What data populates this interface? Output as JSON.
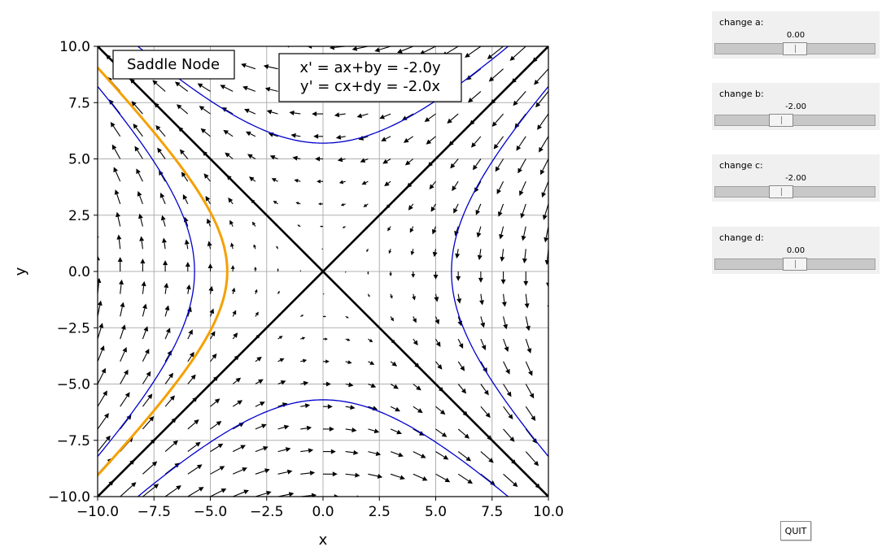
{
  "chart_data": {
    "type": "vector-field",
    "title": "",
    "xlabel": "x",
    "ylabel": "y",
    "xlim": [
      -10,
      10
    ],
    "ylim": [
      -10,
      10
    ],
    "xticks": [
      -10,
      -7.5,
      -5,
      -2.5,
      0,
      2.5,
      5,
      7.5,
      10
    ],
    "yticks": [
      -10,
      -7.5,
      -5,
      -2.5,
      0,
      2.5,
      5,
      7.5,
      10
    ],
    "xtick_labels": [
      "−10.0",
      "−7.5",
      "−5.0",
      "−2.5",
      "0.0",
      "2.5",
      "5.0",
      "7.5",
      "10.0"
    ],
    "ytick_labels": [
      "−10.0",
      "−7.5",
      "−5.0",
      "−2.5",
      "0.0",
      "2.5",
      "5.0",
      "7.5",
      "10.0"
    ],
    "grid": true,
    "system": {
      "a": 0.0,
      "b": -2.0,
      "c": -2.0,
      "d": 0.0
    },
    "classification_label": "Saddle Node",
    "equation_lines": [
      "x' = ax+by = -2.0y",
      "y' = cx+dy = -2.0x"
    ],
    "eigenlines": [
      {
        "name": "",
        "slope": 1,
        "color": "#000000"
      },
      {
        "name": "",
        "slope": -1,
        "color": "#000000"
      }
    ],
    "trajectories": [
      {
        "name": "",
        "family": "x",
        "c": -5.7,
        "color": "#0000cc"
      },
      {
        "name": "",
        "family": "x",
        "c": 5.7,
        "color": "#0000cc"
      },
      {
        "name": "",
        "family": "y",
        "c": 5.7,
        "color": "#0000cc"
      },
      {
        "name": "",
        "family": "y",
        "c": -5.7,
        "color": "#0000cc"
      },
      {
        "name": "",
        "family": "x",
        "c": -4.25,
        "color": "#f5a000"
      }
    ],
    "quiver_grid": [
      -10,
      -9,
      -8,
      -7,
      -6,
      -5,
      -4,
      -3,
      -2,
      -1,
      0,
      1,
      2,
      3,
      4,
      5,
      6,
      7,
      8,
      9,
      10
    ]
  },
  "controls": [
    {
      "label": "change a:",
      "value": "0.00",
      "fraction": 0.5
    },
    {
      "label": "change b:",
      "value": "-2.00",
      "fraction": 0.4
    },
    {
      "label": "change c:",
      "value": "-2.00",
      "fraction": 0.4
    },
    {
      "label": "change d:",
      "value": "0.00",
      "fraction": 0.5
    }
  ],
  "quit_label": "QUIT"
}
